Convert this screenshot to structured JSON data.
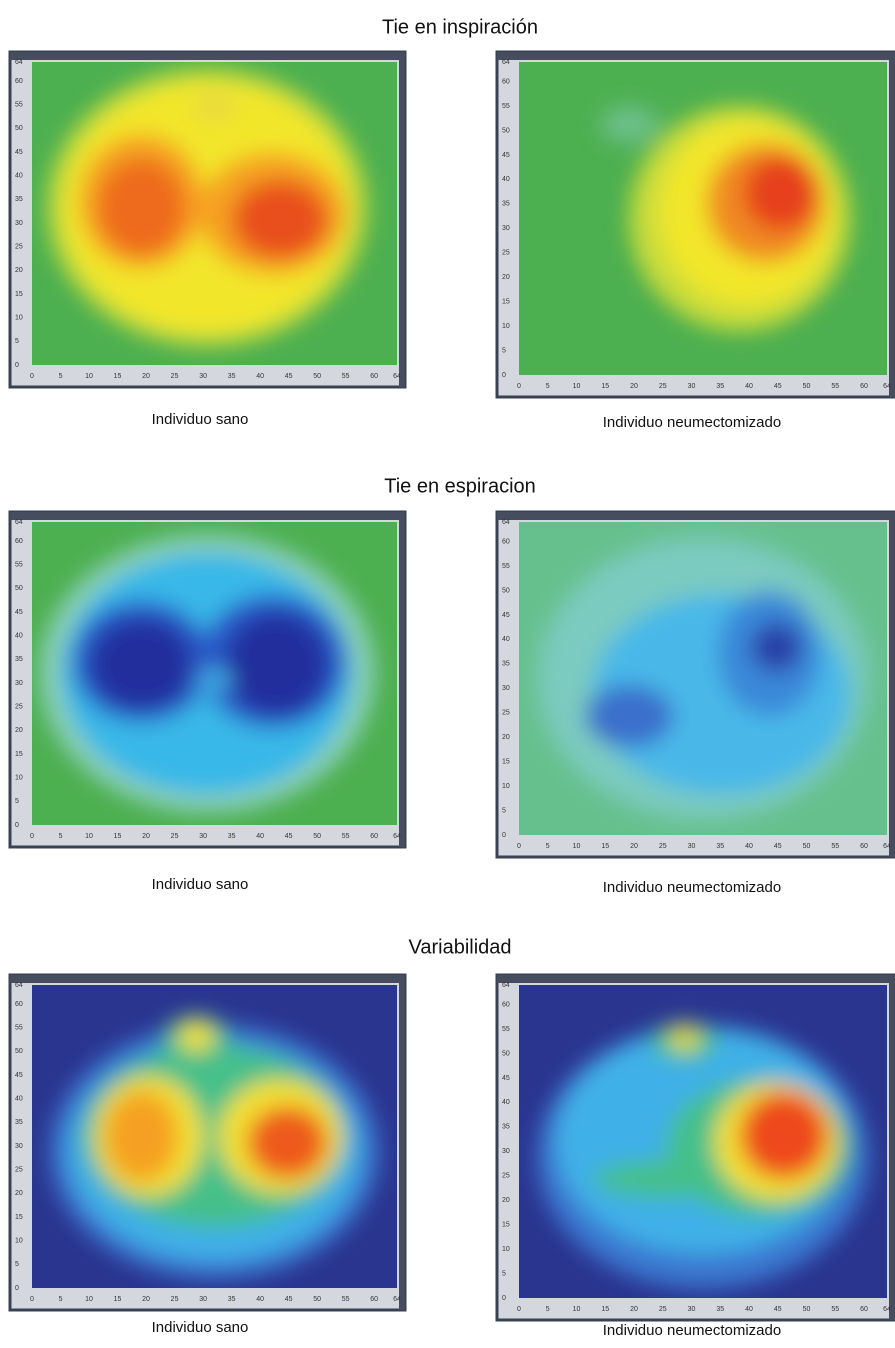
{
  "sections": [
    {
      "title": "Tie en inspiración",
      "panels": [
        {
          "caption": "Individuo sano"
        },
        {
          "caption": "Individuo neumectomizado"
        }
      ]
    },
    {
      "title": "Tie en espiracion",
      "panels": [
        {
          "caption": "Individuo sano"
        },
        {
          "caption": "Individuo neumectomizado"
        }
      ]
    },
    {
      "title": "Variabilidad",
      "panels": [
        {
          "caption": "Individuo sano"
        },
        {
          "caption": "Individuo neumectomizado"
        }
      ]
    }
  ],
  "axis_ticks": [
    0,
    5,
    10,
    15,
    20,
    25,
    30,
    35,
    40,
    45,
    50,
    55,
    60,
    64
  ]
}
